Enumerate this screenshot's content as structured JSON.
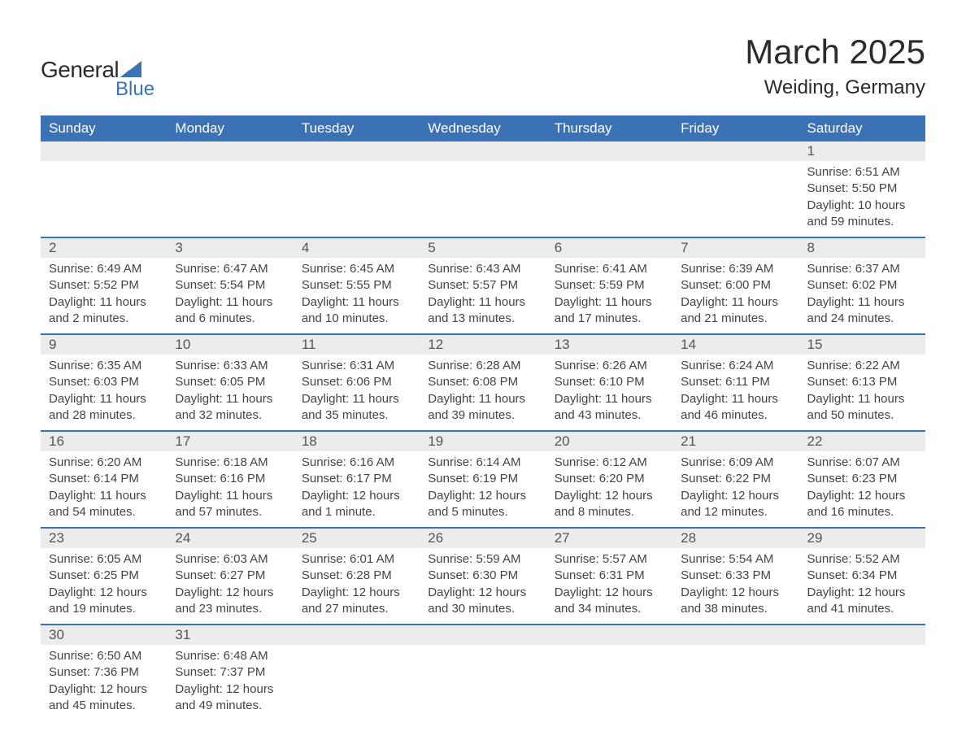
{
  "brand": {
    "main": "General",
    "sub": "Blue",
    "color_primary": "#3a72b5"
  },
  "title": {
    "month": "March 2025",
    "location": "Weiding, Germany"
  },
  "colors": {
    "header_bg": "#3a72b5",
    "header_text": "#ffffff",
    "daynum_bg": "#ececec",
    "row_divider": "#3a72b5",
    "body_text": "#444444",
    "page_bg": "#ffffff"
  },
  "typography": {
    "month_title_pt": 42,
    "location_pt": 24,
    "dayheader_pt": 17,
    "daynum_pt": 17,
    "detail_pt": 15,
    "logo_main_pt": 28,
    "logo_sub_pt": 24
  },
  "day_headers": [
    "Sunday",
    "Monday",
    "Tuesday",
    "Wednesday",
    "Thursday",
    "Friday",
    "Saturday"
  ],
  "weeks": [
    [
      {
        "n": "",
        "sr": "",
        "ss": "",
        "dl": ""
      },
      {
        "n": "",
        "sr": "",
        "ss": "",
        "dl": ""
      },
      {
        "n": "",
        "sr": "",
        "ss": "",
        "dl": ""
      },
      {
        "n": "",
        "sr": "",
        "ss": "",
        "dl": ""
      },
      {
        "n": "",
        "sr": "",
        "ss": "",
        "dl": ""
      },
      {
        "n": "",
        "sr": "",
        "ss": "",
        "dl": ""
      },
      {
        "n": "1",
        "sr": "Sunrise: 6:51 AM",
        "ss": "Sunset: 5:50 PM",
        "dl": "Daylight: 10 hours and 59 minutes."
      }
    ],
    [
      {
        "n": "2",
        "sr": "Sunrise: 6:49 AM",
        "ss": "Sunset: 5:52 PM",
        "dl": "Daylight: 11 hours and 2 minutes."
      },
      {
        "n": "3",
        "sr": "Sunrise: 6:47 AM",
        "ss": "Sunset: 5:54 PM",
        "dl": "Daylight: 11 hours and 6 minutes."
      },
      {
        "n": "4",
        "sr": "Sunrise: 6:45 AM",
        "ss": "Sunset: 5:55 PM",
        "dl": "Daylight: 11 hours and 10 minutes."
      },
      {
        "n": "5",
        "sr": "Sunrise: 6:43 AM",
        "ss": "Sunset: 5:57 PM",
        "dl": "Daylight: 11 hours and 13 minutes."
      },
      {
        "n": "6",
        "sr": "Sunrise: 6:41 AM",
        "ss": "Sunset: 5:59 PM",
        "dl": "Daylight: 11 hours and 17 minutes."
      },
      {
        "n": "7",
        "sr": "Sunrise: 6:39 AM",
        "ss": "Sunset: 6:00 PM",
        "dl": "Daylight: 11 hours and 21 minutes."
      },
      {
        "n": "8",
        "sr": "Sunrise: 6:37 AM",
        "ss": "Sunset: 6:02 PM",
        "dl": "Daylight: 11 hours and 24 minutes."
      }
    ],
    [
      {
        "n": "9",
        "sr": "Sunrise: 6:35 AM",
        "ss": "Sunset: 6:03 PM",
        "dl": "Daylight: 11 hours and 28 minutes."
      },
      {
        "n": "10",
        "sr": "Sunrise: 6:33 AM",
        "ss": "Sunset: 6:05 PM",
        "dl": "Daylight: 11 hours and 32 minutes."
      },
      {
        "n": "11",
        "sr": "Sunrise: 6:31 AM",
        "ss": "Sunset: 6:06 PM",
        "dl": "Daylight: 11 hours and 35 minutes."
      },
      {
        "n": "12",
        "sr": "Sunrise: 6:28 AM",
        "ss": "Sunset: 6:08 PM",
        "dl": "Daylight: 11 hours and 39 minutes."
      },
      {
        "n": "13",
        "sr": "Sunrise: 6:26 AM",
        "ss": "Sunset: 6:10 PM",
        "dl": "Daylight: 11 hours and 43 minutes."
      },
      {
        "n": "14",
        "sr": "Sunrise: 6:24 AM",
        "ss": "Sunset: 6:11 PM",
        "dl": "Daylight: 11 hours and 46 minutes."
      },
      {
        "n": "15",
        "sr": "Sunrise: 6:22 AM",
        "ss": "Sunset: 6:13 PM",
        "dl": "Daylight: 11 hours and 50 minutes."
      }
    ],
    [
      {
        "n": "16",
        "sr": "Sunrise: 6:20 AM",
        "ss": "Sunset: 6:14 PM",
        "dl": "Daylight: 11 hours and 54 minutes."
      },
      {
        "n": "17",
        "sr": "Sunrise: 6:18 AM",
        "ss": "Sunset: 6:16 PM",
        "dl": "Daylight: 11 hours and 57 minutes."
      },
      {
        "n": "18",
        "sr": "Sunrise: 6:16 AM",
        "ss": "Sunset: 6:17 PM",
        "dl": "Daylight: 12 hours and 1 minute."
      },
      {
        "n": "19",
        "sr": "Sunrise: 6:14 AM",
        "ss": "Sunset: 6:19 PM",
        "dl": "Daylight: 12 hours and 5 minutes."
      },
      {
        "n": "20",
        "sr": "Sunrise: 6:12 AM",
        "ss": "Sunset: 6:20 PM",
        "dl": "Daylight: 12 hours and 8 minutes."
      },
      {
        "n": "21",
        "sr": "Sunrise: 6:09 AM",
        "ss": "Sunset: 6:22 PM",
        "dl": "Daylight: 12 hours and 12 minutes."
      },
      {
        "n": "22",
        "sr": "Sunrise: 6:07 AM",
        "ss": "Sunset: 6:23 PM",
        "dl": "Daylight: 12 hours and 16 minutes."
      }
    ],
    [
      {
        "n": "23",
        "sr": "Sunrise: 6:05 AM",
        "ss": "Sunset: 6:25 PM",
        "dl": "Daylight: 12 hours and 19 minutes."
      },
      {
        "n": "24",
        "sr": "Sunrise: 6:03 AM",
        "ss": "Sunset: 6:27 PM",
        "dl": "Daylight: 12 hours and 23 minutes."
      },
      {
        "n": "25",
        "sr": "Sunrise: 6:01 AM",
        "ss": "Sunset: 6:28 PM",
        "dl": "Daylight: 12 hours and 27 minutes."
      },
      {
        "n": "26",
        "sr": "Sunrise: 5:59 AM",
        "ss": "Sunset: 6:30 PM",
        "dl": "Daylight: 12 hours and 30 minutes."
      },
      {
        "n": "27",
        "sr": "Sunrise: 5:57 AM",
        "ss": "Sunset: 6:31 PM",
        "dl": "Daylight: 12 hours and 34 minutes."
      },
      {
        "n": "28",
        "sr": "Sunrise: 5:54 AM",
        "ss": "Sunset: 6:33 PM",
        "dl": "Daylight: 12 hours and 38 minutes."
      },
      {
        "n": "29",
        "sr": "Sunrise: 5:52 AM",
        "ss": "Sunset: 6:34 PM",
        "dl": "Daylight: 12 hours and 41 minutes."
      }
    ],
    [
      {
        "n": "30",
        "sr": "Sunrise: 6:50 AM",
        "ss": "Sunset: 7:36 PM",
        "dl": "Daylight: 12 hours and 45 minutes."
      },
      {
        "n": "31",
        "sr": "Sunrise: 6:48 AM",
        "ss": "Sunset: 7:37 PM",
        "dl": "Daylight: 12 hours and 49 minutes."
      },
      {
        "n": "",
        "sr": "",
        "ss": "",
        "dl": ""
      },
      {
        "n": "",
        "sr": "",
        "ss": "",
        "dl": ""
      },
      {
        "n": "",
        "sr": "",
        "ss": "",
        "dl": ""
      },
      {
        "n": "",
        "sr": "",
        "ss": "",
        "dl": ""
      },
      {
        "n": "",
        "sr": "",
        "ss": "",
        "dl": ""
      }
    ]
  ]
}
